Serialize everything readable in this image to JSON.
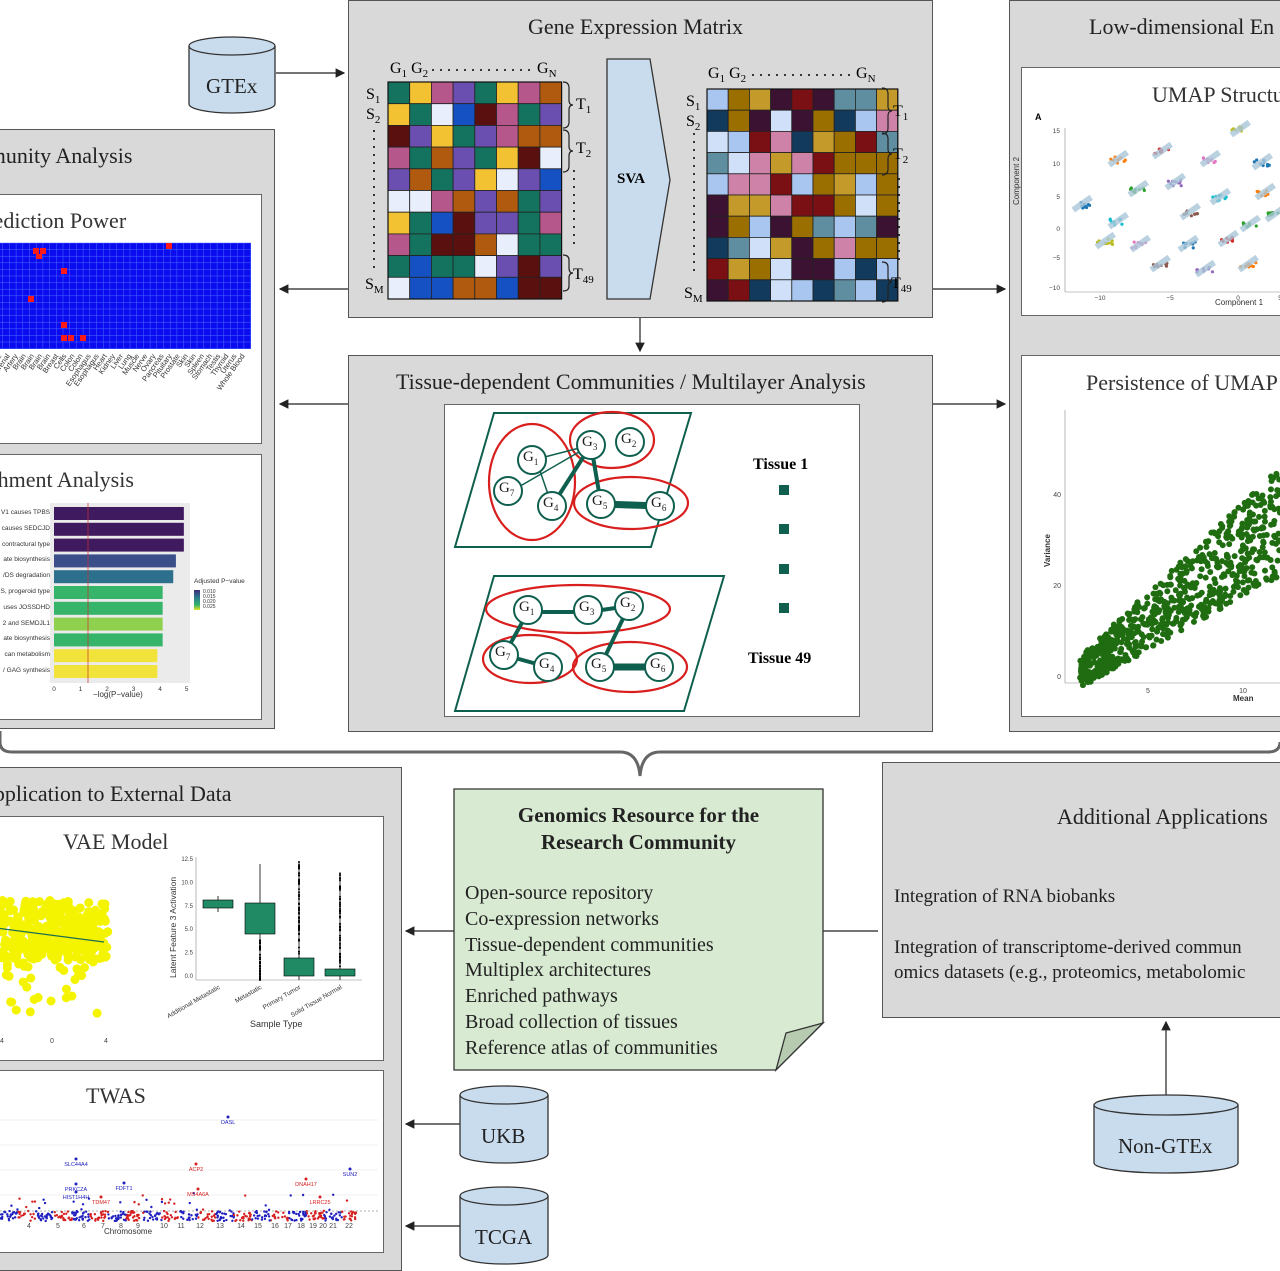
{
  "gtex": {
    "label": "GTEx"
  },
  "matrix_panel": {
    "title": "Gene Expression Matrix",
    "sva_label": "SVA",
    "g1": "G",
    "g1_sub": "1",
    "g2": "G",
    "g2_sub": "2",
    "gn": "G",
    "gn_sub": "N",
    "s1": "S",
    "s1_sub": "1",
    "s2": "S",
    "s2_sub": "2",
    "sm": "S",
    "sm_sub": "M",
    "t1": "T",
    "t1_sub": "1",
    "t2": "T",
    "t2_sub": "2",
    "t49": "T",
    "t49_sub": "49",
    "palette_left": [
      "#b5578a",
      "#6a4fb0",
      "#e8eefb",
      "#13735f",
      "#f2c233",
      "#5b1010",
      "#1651c4",
      "#b05a10"
    ],
    "palette_right": [
      "#9a6f00",
      "#7a0f14",
      "#c49a2a",
      "#3b1232",
      "#a9c6f0",
      "#cfe0f8",
      "#5e8ea0",
      "#cf82a8",
      "#123a5c"
    ]
  },
  "community_panel": {
    "title": "Community Analysis",
    "prediction_title": "Prediction Power",
    "enrichment_title": "Enrichment Analysis"
  },
  "prediction_chart": {
    "tissue_labels": [
      "Adipose",
      "Adrenal",
      "Artery",
      "Brain",
      "Brain",
      "Brain",
      "Brain",
      "Breast",
      "Cells",
      "Colon",
      "Colon",
      "Esophagus",
      "Esophagus",
      "Heart",
      "Kidney",
      "Liver",
      "Lung",
      "Muscle",
      "Nerve",
      "Ovary",
      "Pancreas",
      "Pituitary",
      "Prostate",
      "Skin",
      "Skin",
      "Spleen",
      "Stomach",
      "Testis",
      "Thyroid",
      "Uterus",
      "Whole Blood"
    ]
  },
  "enrichment_chart": {
    "bars": [
      {
        "label": "V1 causes TPBS",
        "value": 4.9
      },
      {
        "label": "causes SEDCJD",
        "value": 4.9
      },
      {
        "label": "contractural type",
        "value": 4.9
      },
      {
        "label": "ate biosynthesis",
        "value": 4.6
      },
      {
        "label": "/DS degradation",
        "value": 4.5
      },
      {
        "label": "S, progeroid type",
        "value": 4.1
      },
      {
        "label": "uses JOSSDHD",
        "value": 4.1
      },
      {
        "label": "2 and SEMDJL1",
        "value": 4.1
      },
      {
        "label": "ate biosynthesis",
        "value": 4.1
      },
      {
        "label": "can metabolism",
        "value": 3.9
      },
      {
        "label": "/ GAG synthesis",
        "value": 3.9
      }
    ],
    "xlabel": "−log(P−value)",
    "xticks": [
      "0",
      "1",
      "2",
      "3",
      "4",
      "5"
    ],
    "legend_title": "Adjusted P−value",
    "legend_values": [
      "0.010",
      "0.015",
      "0.020",
      "0.025"
    ]
  },
  "multilayer_panel": {
    "title": "Tissue-dependent Communities / Multilayer Analysis",
    "tissue1": "Tissue 1",
    "tissue49": "Tissue 49"
  },
  "lowdim_panel": {
    "title": "Low-dimensional En",
    "umap_title": "UMAP Structu",
    "persistence_title": "Persistence of UMAP"
  },
  "umap_chart": {
    "letter": "A",
    "xlabel": "Component 1",
    "ylabel": "Component 2",
    "xticks": [
      "−10",
      "−5",
      "0",
      "5"
    ],
    "yticks": [
      "15",
      "10",
      "5",
      "0",
      "−5",
      "−10"
    ]
  },
  "persistence_chart": {
    "xlabel": "Mean",
    "ylabel": "Variance",
    "xticks": [
      "5",
      "10"
    ],
    "yticks": [
      "40",
      "20",
      "0"
    ]
  },
  "external_panel": {
    "title": "Application to External Data",
    "vae_title": "VAE Model",
    "twas_title": "TWAS"
  },
  "vae_chart": {
    "xticks": [
      "4",
      "0",
      "4"
    ],
    "box_ylabel": "Latent Feature 3 Activation",
    "box_yticks": [
      "12.5",
      "10.0",
      "7.5",
      "5.0",
      "2.5",
      "0.0"
    ],
    "box_xlabel": "Sample Type",
    "box_categories": [
      "Additional Metastatic",
      "Metastatic",
      "Primary Tumor",
      "Solid Tissue Normal"
    ]
  },
  "twas_chart": {
    "xlabel": "Chromosome",
    "xticks": [
      "4",
      "5",
      "6",
      "7",
      "8",
      "9",
      "10",
      "11",
      "12",
      "13",
      "14",
      "15",
      "16",
      "17",
      "18",
      "19",
      "20",
      "21",
      "22"
    ],
    "genes": [
      "OASL",
      "SLC44A4",
      "ACP2",
      "SUN2",
      "FDFT1",
      "PRKCZA",
      "HIST1H4H",
      "DNAH17",
      "TDM47",
      "MS4A6A",
      "LRRC25"
    ]
  },
  "resource_box": {
    "title_line1": "Genomics Resource for the",
    "title_line2": "Research Community",
    "items": [
      "Open-source repository",
      "Co-expression networks",
      "Tissue-dependent communities",
      "Multiplex architectures",
      "Enriched pathways",
      "Broad collection of tissues",
      "Reference atlas of communities"
    ]
  },
  "additional_panel": {
    "title": "Additional Applications",
    "line1": "Integration of RNA biobanks",
    "line2": "Integration of transcriptome-derived commun",
    "line3": "omics datasets (e.g., proteomics, metabolomic"
  },
  "databases": {
    "ukb": "UKB",
    "tcga": "TCGA",
    "nongtex": "Non-GTEx"
  },
  "colors": {
    "panel": "#d9d9d9",
    "resource": "#d8ead2",
    "network_green": "#0f5f4f",
    "community_red": "#d91e1e",
    "umap_blue": "#0000ee"
  }
}
